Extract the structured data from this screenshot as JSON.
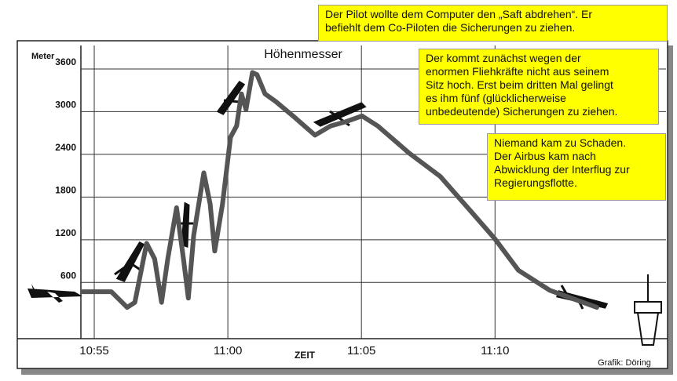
{
  "chart_data": {
    "type": "line",
    "title": "Höhenmesser",
    "y_label": "Meter",
    "x_label": "ZEIT",
    "credit": "Grafik: Döring",
    "annotations": [
      [
        "Der Pilot wollte dem Computer den „Saft abdrehen“. Er",
        "befiehlt dem Co-Piloten die Sicherungen zu ziehen."
      ],
      [
        "Der kommt zunächst wegen der",
        "enormen Fliehkräfte nicht aus seinem",
        "Sitz hoch. Erst beim dritten Mal gelingt",
        "es ihm fünf (glücklicherweise",
        "unbedeutende) Sicherungen zu ziehen."
      ],
      [
        "Niemand kam zu Schaden.",
        "Der Airbus kam nach",
        "Abwicklung der Interflug zur",
        "Regierungsflotte."
      ]
    ],
    "x": [
      654.56,
      655.64,
      656.23,
      656.52,
      656.96,
      657.26,
      657.52,
      657.75,
      658.08,
      658.34,
      658.52,
      658.72,
      659.1,
      659.34,
      659.51,
      659.8,
      660.1,
      660.33,
      660.51,
      660.68,
      660.92,
      661.09,
      661.39,
      661.8,
      662.53,
      663.26,
      663.85,
      664.43,
      665.02,
      665.61,
      666.78,
      667.95,
      669.12,
      670.0,
      670.88,
      672.05,
      673.81
    ],
    "values": [
      470,
      470,
      250,
      320,
      1150,
      930,
      320,
      930,
      1650,
      930,
      380,
      1260,
      2140,
      1700,
      1040,
      1700,
      2640,
      2800,
      3250,
      3030,
      3550,
      3520,
      3250,
      3140,
      2910,
      2670,
      2800,
      2860,
      2940,
      2800,
      2420,
      2090,
      1590,
      1210,
      770,
      490,
      250
    ],
    "color": "#555555",
    "xlim": [
      654.5,
      676.4
    ],
    "ylim": [
      -190,
      3930
    ],
    "xticks": [
      {
        "value": 655,
        "label": "10:55"
      },
      {
        "value": 660,
        "label": "11:00"
      },
      {
        "value": 665,
        "label": "11:05"
      },
      {
        "value": 670,
        "label": "11:10"
      }
    ],
    "yticks": [
      600,
      1200,
      1800,
      2400,
      3000,
      3600
    ],
    "grid": true
  }
}
